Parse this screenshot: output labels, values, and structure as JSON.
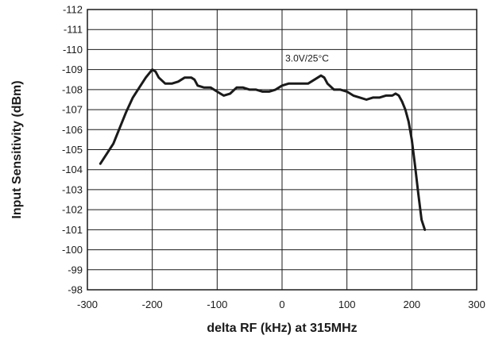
{
  "chart_data": {
    "type": "line",
    "title": "",
    "xlabel": "delta RF (kHz) at 315MHz",
    "ylabel": "Input Sensitivity (dBm)",
    "xlim": [
      -300,
      300
    ],
    "ylim": [
      -98,
      -112
    ],
    "y_axis_inverted": true,
    "grid": true,
    "x_ticks": [
      "-300",
      "-200",
      "-100",
      "0",
      "100",
      "200",
      "300"
    ],
    "y_ticks": [
      "-112",
      "-111",
      "-110",
      "-109",
      "-108",
      "-107",
      "-106",
      "-105",
      "-104",
      "-103",
      "-102",
      "-101",
      "-100",
      "-99",
      "-98"
    ],
    "annotation": "3.0V/25°C",
    "series": [
      {
        "x": [
          -280,
          -260,
          -250,
          -240,
          -230,
          -220,
          -210,
          -200,
          -195,
          -190,
          -180,
          -170,
          -160,
          -150,
          -140,
          -135,
          -130,
          -120,
          -110,
          -100,
          -90,
          -80,
          -70,
          -60,
          -50,
          -40,
          -30,
          -20,
          -10,
          0,
          10,
          20,
          30,
          40,
          50,
          60,
          65,
          70,
          80,
          90,
          100,
          110,
          120,
          130,
          140,
          150,
          160,
          170,
          175,
          180,
          185,
          190,
          195,
          200,
          205,
          210,
          215,
          220
        ],
        "y": [
          -104.3,
          -105.3,
          -106.1,
          -106.9,
          -107.6,
          -108.1,
          -108.6,
          -109.0,
          -108.9,
          -108.6,
          -108.3,
          -108.3,
          -108.4,
          -108.6,
          -108.6,
          -108.5,
          -108.2,
          -108.1,
          -108.1,
          -107.9,
          -107.7,
          -107.8,
          -108.1,
          -108.1,
          -108.0,
          -108.0,
          -107.9,
          -107.9,
          -108.0,
          -108.2,
          -108.3,
          -108.3,
          -108.3,
          -108.3,
          -108.5,
          -108.7,
          -108.6,
          -108.3,
          -108.0,
          -108.0,
          -107.9,
          -107.7,
          -107.6,
          -107.5,
          -107.6,
          -107.6,
          -107.7,
          -107.7,
          -107.8,
          -107.7,
          -107.4,
          -107.0,
          -106.4,
          -105.5,
          -104.2,
          -102.8,
          -101.5,
          -101.0
        ]
      }
    ]
  }
}
